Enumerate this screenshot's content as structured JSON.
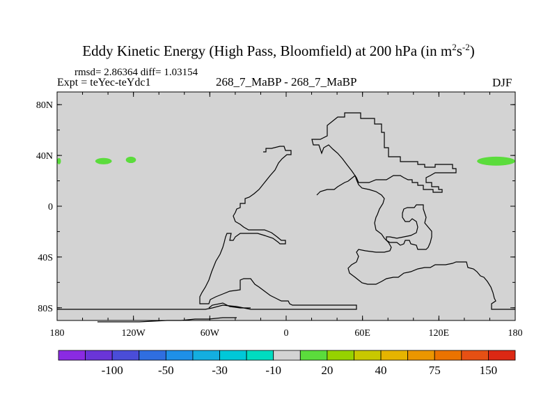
{
  "title": {
    "main": "Eddy Kinetic Energy (High Pass, Bloomfield) at 200 hPa (in m",
    "sup1": "2",
    "mid": "s",
    "sup2": "-2",
    "end": ")"
  },
  "stats": {
    "rmsd_label": "rmsd=",
    "rmsd": "2.86364",
    "diff_label": "diff=",
    "diff": "1.03154"
  },
  "expt_label": "Expt = teYec-teYdc1",
  "center_label": "268_7_MaBP - 268_7_MaBP",
  "season": "DJF",
  "colors": {
    "land_outline": "#000000",
    "ocean": "#d3d3d3",
    "anomaly": "#5bdc3c"
  },
  "chart_data": {
    "type": "contour-map",
    "variable": "Eddy Kinetic Energy difference",
    "units": "m2 s-2",
    "lon_range": [
      -180,
      180
    ],
    "lat_range": [
      -90,
      90
    ],
    "x_ticks": [
      {
        "value": -180,
        "label": "180"
      },
      {
        "value": -120,
        "label": "120W"
      },
      {
        "value": -60,
        "label": "60W"
      },
      {
        "value": 0,
        "label": "0"
      },
      {
        "value": 60,
        "label": "60E"
      },
      {
        "value": 120,
        "label": "120E"
      },
      {
        "value": 180,
        "label": "180"
      }
    ],
    "y_ticks": [
      {
        "value": 80,
        "label": "80N"
      },
      {
        "value": 40,
        "label": "40N"
      },
      {
        "value": 0,
        "label": "0"
      },
      {
        "value": -40,
        "label": "40S"
      },
      {
        "value": -80,
        "label": "80S"
      }
    ],
    "background_level": "-10 to 20",
    "anomaly_regions": [
      {
        "level": "20",
        "lon_range": [
          -180,
          -177
        ],
        "lat_range": [
          33,
          38
        ]
      },
      {
        "level": "20",
        "lon_range": [
          -150,
          -137
        ],
        "lat_range": [
          33,
          38
        ]
      },
      {
        "level": "20",
        "lon_range": [
          -126,
          -118
        ],
        "lat_range": [
          34,
          39
        ]
      },
      {
        "level": "20",
        "lon_range": [
          150,
          180
        ],
        "lat_range": [
          32,
          39
        ]
      }
    ],
    "colorbar": {
      "colors": [
        "#8a2be2",
        "#6a35d8",
        "#4a4dd8",
        "#2f6ee0",
        "#1e90e8",
        "#14aee0",
        "#00c8d8",
        "#00dcc0",
        "#d3d3d3",
        "#5bdc3c",
        "#96d200",
        "#c8c800",
        "#e6b400",
        "#eb9600",
        "#eb7300",
        "#e65014",
        "#dc2814"
      ],
      "labels": [
        {
          "after_box": 2,
          "text": "-100"
        },
        {
          "after_box": 4,
          "text": "-50"
        },
        {
          "after_box": 6,
          "text": "-30"
        },
        {
          "after_box": 8,
          "text": "-10"
        },
        {
          "after_box": 10,
          "text": "20"
        },
        {
          "after_box": 12,
          "text": "40"
        },
        {
          "after_box": 14,
          "text": "75"
        },
        {
          "after_box": 16,
          "text": "150"
        }
      ]
    }
  }
}
